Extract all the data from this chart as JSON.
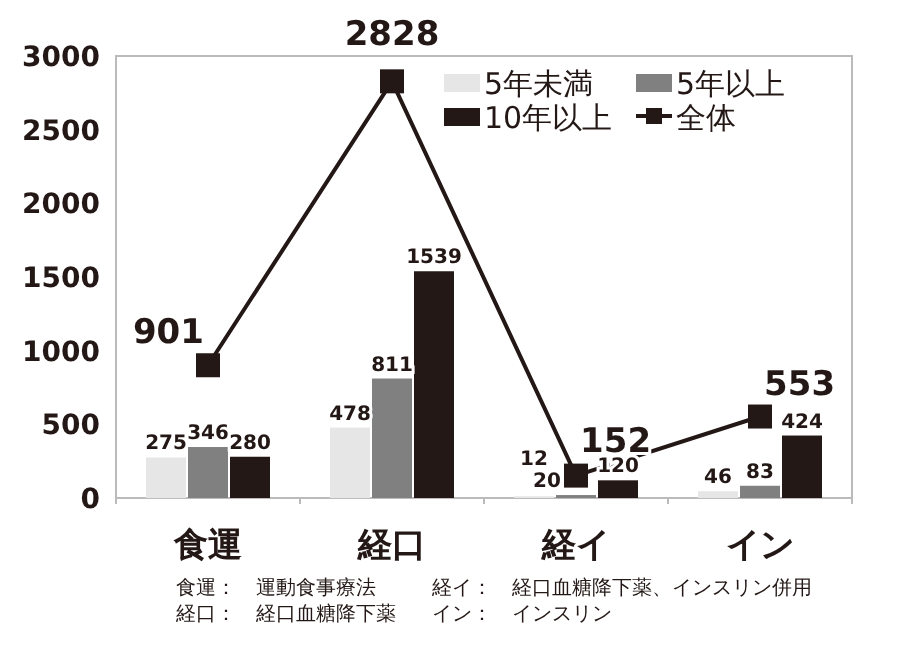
{
  "chart_data": {
    "type": "bar",
    "categories": [
      "食運",
      "経口",
      "経イ",
      "イン"
    ],
    "series": [
      {
        "name": "5年未満",
        "color": "#e6e6e6",
        "values": [
          275,
          478,
          12,
          46
        ]
      },
      {
        "name": "5年以上",
        "color": "#808080",
        "values": [
          346,
          811,
          20,
          83
        ]
      },
      {
        "name": "10年以上",
        "color": "#231815",
        "values": [
          280,
          1539,
          120,
          424
        ]
      },
      {
        "name": "全体",
        "type": "line",
        "color": "#231815",
        "marker": "square",
        "values": [
          901,
          2828,
          152,
          553
        ]
      }
    ],
    "ylim": [
      0,
      3000
    ],
    "yticks": [
      0,
      500,
      1000,
      1500,
      2000,
      2500,
      3000
    ],
    "data_labels": true,
    "legend": "top right",
    "annotations": [
      "食運：　運動食事療法",
      "経イ：　経口血糖降下薬、インスリン併用",
      "経口：　経口血糖降下薬",
      "イン：　インスリン"
    ]
  }
}
